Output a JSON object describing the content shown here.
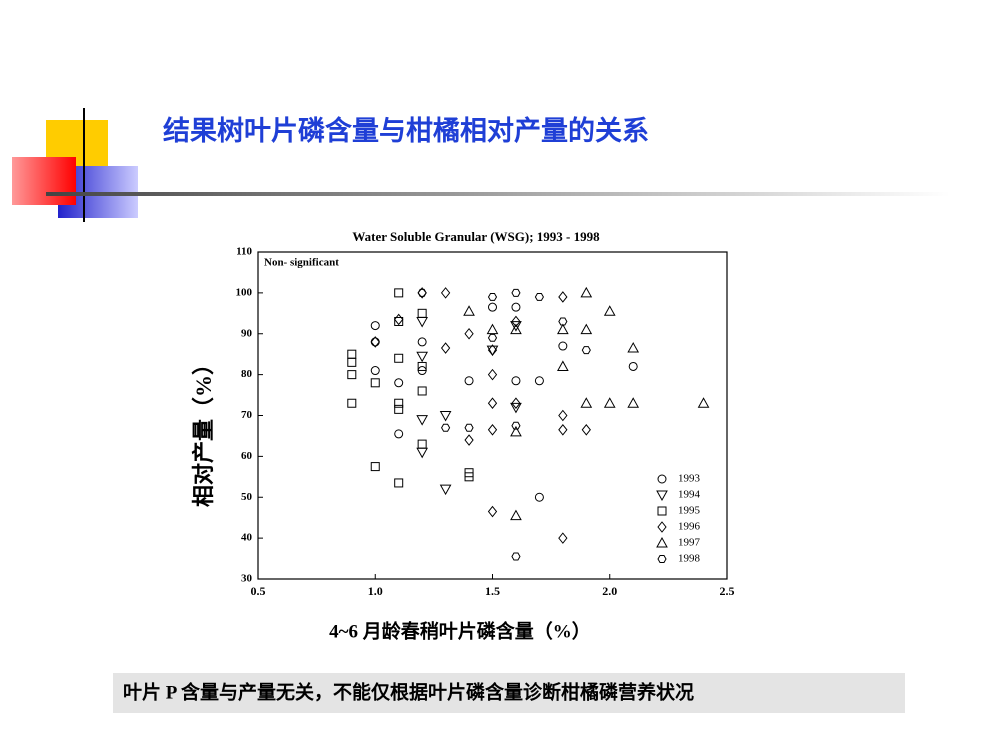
{
  "slide": {
    "title": "结果树叶片磷含量与柑橘相对产量的关系",
    "caption": "叶片 P 含量与产量无关，不能仅根据叶片磷含量诊断柑橘磷营养状况"
  },
  "chart_data": {
    "type": "scatter",
    "title": "Water Soluble Granular (WSG); 1993 - 1998",
    "annotation": "Non- significant",
    "x_label": "4~6 月龄春稍叶片磷含量（%）",
    "y_label": "相对产量（%）",
    "xlim": [
      0.5,
      2.5
    ],
    "xticks": [
      0.5,
      {
        "value": 1,
        "label": "1.0"
      },
      1.5,
      {
        "value": 2,
        "label": "2.0"
      },
      2.5
    ],
    "ylim": [
      30,
      110
    ],
    "yticks": [
      30,
      40,
      50,
      60,
      70,
      80,
      90,
      100,
      110
    ],
    "legend": "lower right",
    "series": [
      {
        "name": "1993",
        "color": "#000000",
        "marker": "circle",
        "x": [
          1.0,
          1.0,
          1.0,
          1.1,
          1.1,
          1.2,
          1.2,
          1.4,
          1.5,
          1.6,
          1.6,
          1.7,
          1.7,
          2.1,
          1.8
        ],
        "values": [
          92,
          88,
          81,
          78,
          65.5,
          88,
          81,
          78.5,
          96.5,
          96.5,
          78.5,
          78.5,
          50,
          82,
          87
        ]
      },
      {
        "name": "1994",
        "color": "#000000",
        "marker": "triangle-down",
        "x": [
          1.2,
          1.2,
          1.2,
          1.3,
          1.3,
          1.6,
          1.6,
          1.5,
          1.2
        ],
        "values": [
          93,
          84.5,
          69,
          70,
          52,
          72,
          92,
          86,
          61
        ]
      },
      {
        "name": "1995",
        "color": "#000000",
        "marker": "square",
        "x": [
          0.9,
          0.9,
          0.9,
          0.9,
          1.0,
          1.0,
          1.1,
          1.1,
          1.1,
          1.1,
          1.1,
          1.1,
          1.2,
          1.2,
          1.2,
          1.2,
          1.4,
          1.4
        ],
        "values": [
          85,
          83,
          80,
          73,
          78,
          57.5,
          100,
          93,
          84,
          73,
          71.5,
          53.5,
          95,
          82,
          76,
          63,
          56,
          55
        ]
      },
      {
        "name": "1996",
        "color": "#000000",
        "marker": "diamond",
        "x": [
          1.0,
          1.1,
          1.2,
          1.3,
          1.3,
          1.4,
          1.4,
          1.5,
          1.5,
          1.5,
          1.5,
          1.5,
          1.6,
          1.6,
          1.8,
          1.8,
          1.8,
          1.8,
          1.9
        ],
        "values": [
          88,
          93.5,
          100,
          100,
          86.5,
          90,
          64,
          86,
          80,
          73,
          66.5,
          46.5,
          93,
          73,
          99,
          70,
          66.5,
          40,
          66.5
        ]
      },
      {
        "name": "1997",
        "color": "#000000",
        "marker": "triangle-up",
        "x": [
          1.4,
          1.5,
          1.6,
          1.6,
          1.6,
          1.8,
          1.8,
          1.9,
          1.9,
          1.9,
          2.0,
          2.0,
          2.1,
          2.1,
          2.4
        ],
        "values": [
          95.5,
          91,
          91,
          66,
          45.5,
          82,
          91,
          100,
          91,
          73,
          95.5,
          73,
          86.5,
          73,
          73
        ]
      },
      {
        "name": "1998",
        "color": "#000000",
        "marker": "hexagon",
        "x": [
          1.2,
          1.3,
          1.4,
          1.5,
          1.5,
          1.6,
          1.6,
          1.7,
          1.6,
          1.8,
          1.9
        ],
        "values": [
          100,
          67,
          67,
          99,
          89,
          100,
          67.5,
          99,
          35.5,
          93,
          86
        ]
      }
    ]
  }
}
